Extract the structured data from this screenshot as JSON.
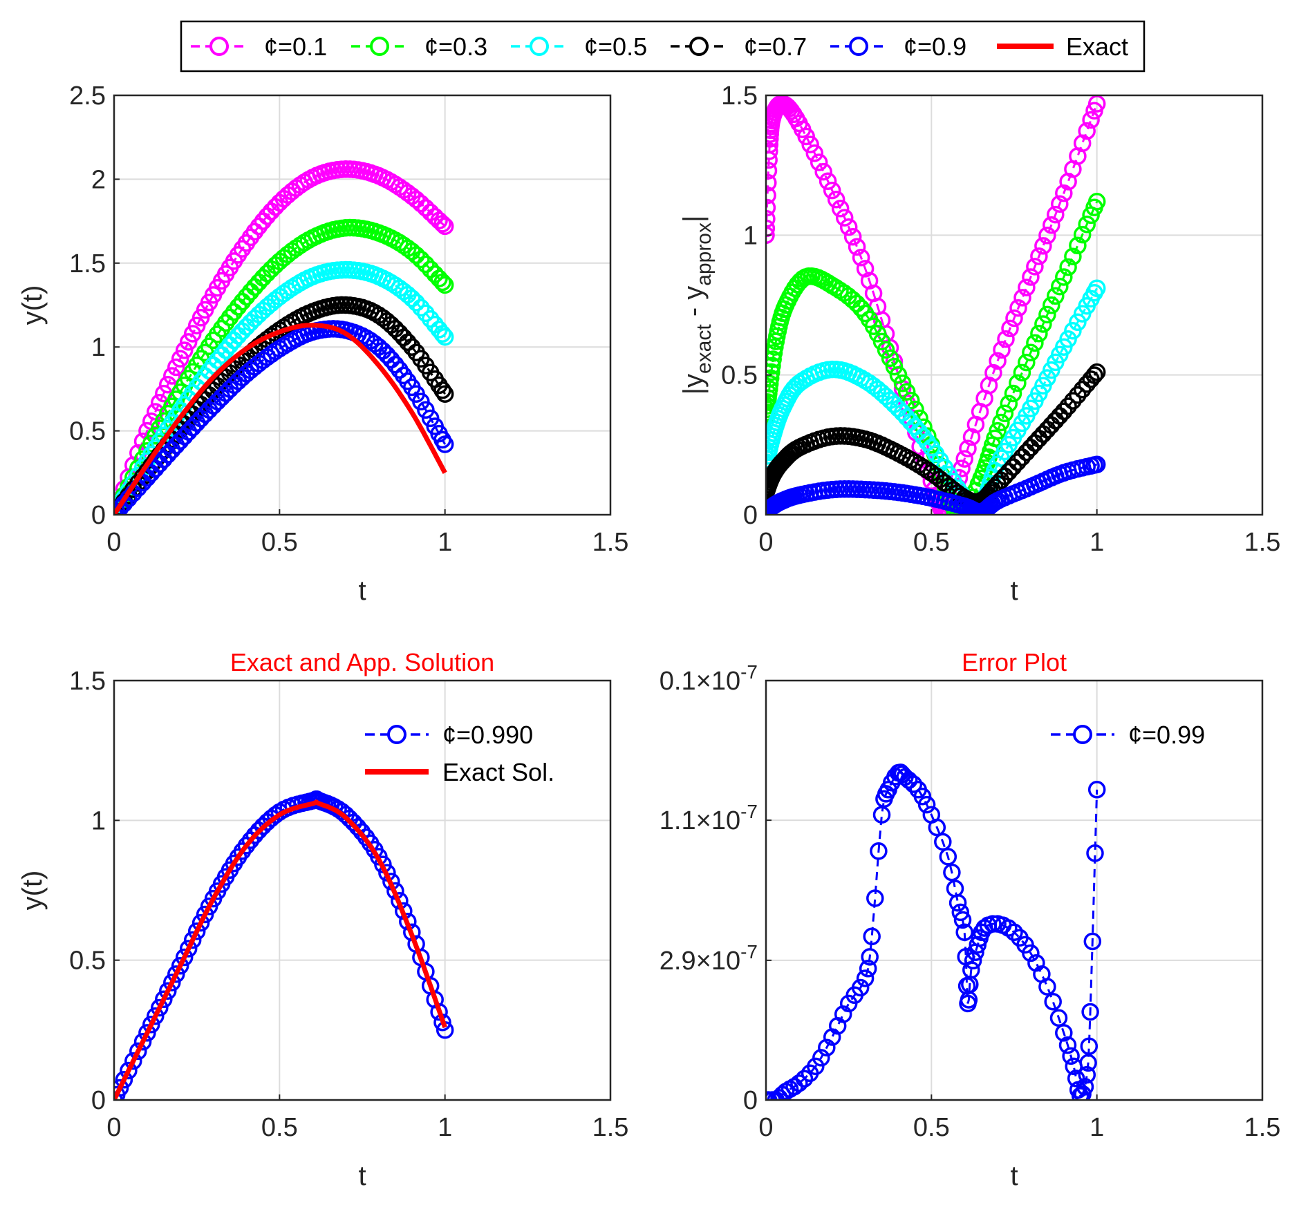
{
  "colors": {
    "magenta": "#ff00ff",
    "green": "#00ff00",
    "cyan": "#00ffff",
    "black": "#000000",
    "blue": "#0000ff",
    "red": "#ff0000",
    "grid": "#dcdcdc",
    "axis": "#262626"
  },
  "top_legend": {
    "items": [
      {
        "label": "¢=0.1",
        "color": "#ff00ff",
        "style": "marker"
      },
      {
        "label": "¢=0.3",
        "color": "#00ff00",
        "style": "marker"
      },
      {
        "label": "¢=0.5",
        "color": "#00ffff",
        "style": "marker"
      },
      {
        "label": "¢=0.7",
        "color": "#000000",
        "style": "marker"
      },
      {
        "label": "¢=0.9",
        "color": "#0000ff",
        "style": "marker"
      },
      {
        "label": "Exact",
        "color": "#ff0000",
        "style": "line"
      }
    ]
  },
  "chart_data": [
    {
      "id": "solutions",
      "type": "line",
      "title": "",
      "xlabel": "t",
      "ylabel": "y(t)",
      "xlim": [
        0,
        1.5
      ],
      "ylim": [
        0,
        2.5
      ],
      "xticks": [
        0,
        0.5,
        1,
        1.5
      ],
      "xticklabels": [
        "0",
        "0.5",
        "1",
        "1.5"
      ],
      "yticks": [
        0,
        0.5,
        1,
        1.5,
        2,
        2.5
      ],
      "yticklabels": [
        "0",
        "0.5",
        "1",
        "1.5",
        "2",
        "2.5"
      ],
      "grid": true,
      "series": [
        {
          "name": "¢=0.1",
          "color": "#ff00ff",
          "marker": "circle",
          "x": [
            0,
            0.1,
            0.2,
            0.3,
            0.4,
            0.5,
            0.6,
            0.7,
            0.8,
            0.9,
            1.0
          ],
          "y": [
            0,
            0.5,
            0.93,
            1.31,
            1.62,
            1.86,
            2.01,
            2.06,
            2.02,
            1.9,
            1.72
          ]
        },
        {
          "name": "¢=0.3",
          "color": "#00ff00",
          "marker": "circle",
          "x": [
            0,
            0.1,
            0.2,
            0.3,
            0.4,
            0.5,
            0.6,
            0.7,
            0.8,
            0.9,
            1.0
          ],
          "y": [
            0,
            0.38,
            0.73,
            1.04,
            1.3,
            1.51,
            1.65,
            1.71,
            1.68,
            1.57,
            1.37
          ]
        },
        {
          "name": "¢=0.5",
          "color": "#00ffff",
          "marker": "circle",
          "x": [
            0,
            0.1,
            0.2,
            0.3,
            0.4,
            0.5,
            0.6,
            0.7,
            0.8,
            0.9,
            1.0
          ],
          "y": [
            0,
            0.32,
            0.62,
            0.89,
            1.12,
            1.3,
            1.42,
            1.46,
            1.42,
            1.29,
            1.06
          ]
        },
        {
          "name": "¢=0.7",
          "color": "#000000",
          "marker": "circle",
          "x": [
            0,
            0.1,
            0.2,
            0.3,
            0.4,
            0.5,
            0.6,
            0.7,
            0.8,
            0.9,
            1.0
          ],
          "y": [
            0,
            0.26,
            0.51,
            0.74,
            0.94,
            1.1,
            1.21,
            1.25,
            1.19,
            1.0,
            0.72
          ]
        },
        {
          "name": "¢=0.9",
          "color": "#0000ff",
          "marker": "circle",
          "x": [
            0,
            0.1,
            0.2,
            0.3,
            0.4,
            0.5,
            0.6,
            0.7,
            0.8,
            0.9,
            1.0
          ],
          "y": [
            0,
            0.22,
            0.44,
            0.65,
            0.84,
            0.99,
            1.09,
            1.1,
            1.0,
            0.76,
            0.42
          ]
        },
        {
          "name": "Exact",
          "color": "#ff0000",
          "marker": "none",
          "x": [
            0,
            0.1,
            0.2,
            0.3,
            0.4,
            0.5,
            0.6,
            0.7,
            0.8,
            0.9,
            1.0
          ],
          "y": [
            0,
            0.3,
            0.58,
            0.82,
            0.99,
            1.09,
            1.13,
            1.08,
            0.89,
            0.61,
            0.25
          ]
        }
      ]
    },
    {
      "id": "abs-error",
      "type": "line",
      "title": "",
      "xlabel": "t",
      "ylabel": "|y_exact - y_approx|",
      "ylabel_parts": {
        "open": "|y",
        "sub1": "exact",
        "mid": " - y",
        "sub2": "approx",
        "close": "|"
      },
      "xlim": [
        0,
        1.5
      ],
      "ylim": [
        0,
        1.5
      ],
      "xticks": [
        0,
        0.5,
        1,
        1.5
      ],
      "xticklabels": [
        "0",
        "0.5",
        "1",
        "1.5"
      ],
      "yticks": [
        0,
        0.5,
        1,
        1.5
      ],
      "yticklabels": [
        "0",
        "0.5",
        "1",
        "1.5"
      ],
      "grid": true,
      "series": [
        {
          "name": "¢=0.1",
          "color": "#ff00ff",
          "marker": "circle",
          "x": [
            0,
            0.01,
            0.02,
            0.05,
            0.1,
            0.2,
            0.3,
            0.4,
            0.5,
            0.55,
            0.6,
            0.7,
            0.8,
            0.9,
            1.0
          ],
          "y": [
            1.0,
            1.3,
            1.42,
            1.47,
            1.4,
            1.16,
            0.88,
            0.5,
            0.12,
            0.0,
            0.2,
            0.55,
            0.85,
            1.15,
            1.47
          ]
        },
        {
          "name": "¢=0.3",
          "color": "#00ff00",
          "marker": "circle",
          "x": [
            0,
            0.01,
            0.03,
            0.06,
            0.12,
            0.2,
            0.3,
            0.4,
            0.5,
            0.58,
            0.65,
            0.7,
            0.8,
            0.9,
            1.0
          ],
          "y": [
            0.35,
            0.45,
            0.62,
            0.75,
            0.85,
            0.82,
            0.72,
            0.5,
            0.25,
            0.0,
            0.13,
            0.3,
            0.58,
            0.85,
            1.12
          ]
        },
        {
          "name": "¢=0.5",
          "color": "#00ffff",
          "marker": "circle",
          "x": [
            0,
            0.02,
            0.05,
            0.1,
            0.2,
            0.3,
            0.4,
            0.5,
            0.6,
            0.65,
            0.7,
            0.8,
            0.9,
            1.0
          ],
          "y": [
            0.18,
            0.28,
            0.38,
            0.47,
            0.52,
            0.48,
            0.38,
            0.24,
            0.06,
            0.03,
            0.18,
            0.38,
            0.6,
            0.81
          ]
        },
        {
          "name": "¢=0.7",
          "color": "#000000",
          "marker": "circle",
          "x": [
            0,
            0.02,
            0.05,
            0.1,
            0.2,
            0.3,
            0.4,
            0.5,
            0.6,
            0.65,
            0.7,
            0.8,
            0.9,
            1.0
          ],
          "y": [
            0.08,
            0.14,
            0.19,
            0.24,
            0.28,
            0.27,
            0.22,
            0.15,
            0.06,
            0.05,
            0.11,
            0.24,
            0.37,
            0.51
          ]
        },
        {
          "name": "¢=0.9",
          "color": "#0000ff",
          "marker": "circle",
          "x": [
            0,
            0.02,
            0.05,
            0.1,
            0.2,
            0.3,
            0.4,
            0.5,
            0.6,
            0.65,
            0.7,
            0.8,
            0.9,
            1.0
          ],
          "y": [
            0.01,
            0.03,
            0.05,
            0.07,
            0.09,
            0.09,
            0.08,
            0.06,
            0.03,
            0.01,
            0.05,
            0.1,
            0.15,
            0.18
          ]
        }
      ]
    },
    {
      "id": "exact-vs-approx",
      "type": "line",
      "title": "Exact and App. Solution",
      "xlabel": "t",
      "ylabel": "y(t)",
      "xlim": [
        0,
        1.5
      ],
      "ylim": [
        0,
        1.5
      ],
      "xticks": [
        0,
        0.5,
        1,
        1.5
      ],
      "xticklabels": [
        "0",
        "0.5",
        "1",
        "1.5"
      ],
      "yticks": [
        0,
        0.5,
        1,
        1.5
      ],
      "yticklabels": [
        "0",
        "0.5",
        "1",
        "1.5"
      ],
      "grid": true,
      "legend": {
        "position": "top-right",
        "items": [
          {
            "label": "¢=0.990",
            "color": "#0000ff",
            "style": "marker"
          },
          {
            "label": "Exact Sol.",
            "color": "#ff0000",
            "style": "line"
          }
        ]
      },
      "series": [
        {
          "name": "¢=0.990",
          "color": "#0000ff",
          "marker": "circle",
          "x": [
            0,
            0.1,
            0.2,
            0.3,
            0.4,
            0.5,
            0.6,
            0.62,
            0.7,
            0.8,
            0.9,
            1.0
          ],
          "y": [
            0,
            0.24,
            0.48,
            0.72,
            0.91,
            1.03,
            1.07,
            1.07,
            1.02,
            0.87,
            0.6,
            0.25
          ]
        },
        {
          "name": "Exact Sol.",
          "color": "#ff0000",
          "marker": "none",
          "x": [
            0,
            0.1,
            0.2,
            0.3,
            0.4,
            0.5,
            0.6,
            0.62,
            0.7,
            0.8,
            0.9,
            1.0
          ],
          "y": [
            0,
            0.24,
            0.48,
            0.72,
            0.91,
            1.02,
            1.06,
            1.06,
            1.01,
            0.86,
            0.59,
            0.26
          ]
        }
      ]
    },
    {
      "id": "error-plot",
      "type": "line",
      "title": "Error Plot",
      "xlabel": "t",
      "ylabel": "",
      "xlim": [
        0,
        1.5
      ],
      "ylim": [
        0,
        1
      ],
      "xticks": [
        0,
        0.5,
        1,
        1.5
      ],
      "xticklabels": [
        "0",
        "0.5",
        "1",
        "1.5"
      ],
      "yticks": [
        0,
        0.333,
        0.667,
        1
      ],
      "yticklabels": [
        {
          "base": "0",
          "mantissa": "",
          "exponent": ""
        },
        {
          "base": "2.9",
          "mantissa": "×10",
          "exponent": "-7"
        },
        {
          "base": "1.1",
          "mantissa": "×10",
          "exponent": "-7"
        },
        {
          "base": "0.1",
          "mantissa": "×10",
          "exponent": "-7"
        }
      ],
      "grid": true,
      "legend": {
        "position": "top-right",
        "items": [
          {
            "label": "¢=0.99",
            "color": "#0000ff",
            "style": "marker"
          }
        ]
      },
      "series": [
        {
          "name": "¢=0.99",
          "color": "#0000ff",
          "marker": "circle",
          "x": [
            0,
            0.03,
            0.06,
            0.1,
            0.15,
            0.2,
            0.25,
            0.3,
            0.32,
            0.35,
            0.37,
            0.4,
            0.42,
            0.46,
            0.5,
            0.55,
            0.58,
            0.6,
            0.61,
            0.62,
            0.64,
            0.66,
            0.7,
            0.75,
            0.8,
            0.85,
            0.9,
            0.93,
            0.95,
            0.97,
            0.98,
            1.0
          ],
          "y": [
            0,
            0.0,
            0.02,
            0.04,
            0.08,
            0.15,
            0.23,
            0.29,
            0.39,
            0.68,
            0.74,
            0.78,
            0.77,
            0.74,
            0.68,
            0.58,
            0.47,
            0.4,
            0.23,
            0.31,
            0.37,
            0.41,
            0.42,
            0.4,
            0.35,
            0.27,
            0.16,
            0.08,
            0.01,
            0.06,
            0.21,
            0.74
          ]
        }
      ]
    }
  ]
}
